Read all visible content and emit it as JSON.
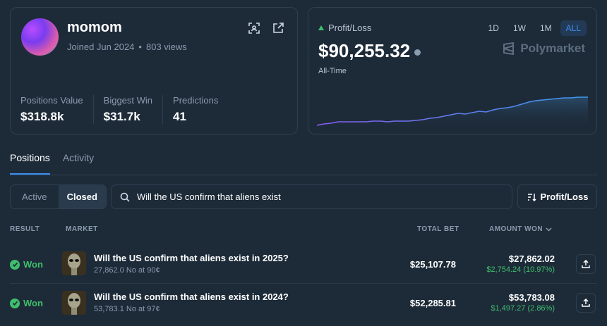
{
  "profile": {
    "username": "momom",
    "joined": "Joined Jun 2024",
    "views": "803 views",
    "stats": [
      {
        "label": "Positions Value",
        "value": "$318.8k"
      },
      {
        "label": "Biggest Win",
        "value": "$31.7k"
      },
      {
        "label": "Predictions",
        "value": "41"
      }
    ]
  },
  "pnl": {
    "label": "Profit/Loss",
    "value": "$90,255.32",
    "period": "All-Time",
    "ranges": [
      "1D",
      "1W",
      "1M",
      "ALL"
    ],
    "active_range": "ALL",
    "brand": "Polymarket",
    "colors": {
      "line_start": "#8a5cf0",
      "line_end": "#3b9af0",
      "up": "#3fbf6c"
    }
  },
  "tabs": [
    "Positions",
    "Activity"
  ],
  "filter": {
    "options": [
      "Active",
      "Closed"
    ],
    "selected": "Closed"
  },
  "search": {
    "value": "Will the US confirm that aliens exist"
  },
  "sort_button": "Profit/Loss",
  "table": {
    "headers": {
      "result": "RESULT",
      "market": "MARKET",
      "total_bet": "TOTAL BET",
      "amount_won": "AMOUNT WON"
    },
    "rows": [
      {
        "result": "Won",
        "title": "Will the US confirm that aliens exist in 2025?",
        "sub": "27,862.0 No at 90¢",
        "total_bet": "$25,107.78",
        "amount_won": "$27,862.02",
        "gain": "$2,754.24 (10.97%)"
      },
      {
        "result": "Won",
        "title": "Will the US confirm that aliens exist in 2024?",
        "sub": "53,783.1 No at 97¢",
        "total_bet": "$52,285.81",
        "amount_won": "$53,783.08",
        "gain": "$1,497.27 (2.86%)"
      }
    ]
  }
}
